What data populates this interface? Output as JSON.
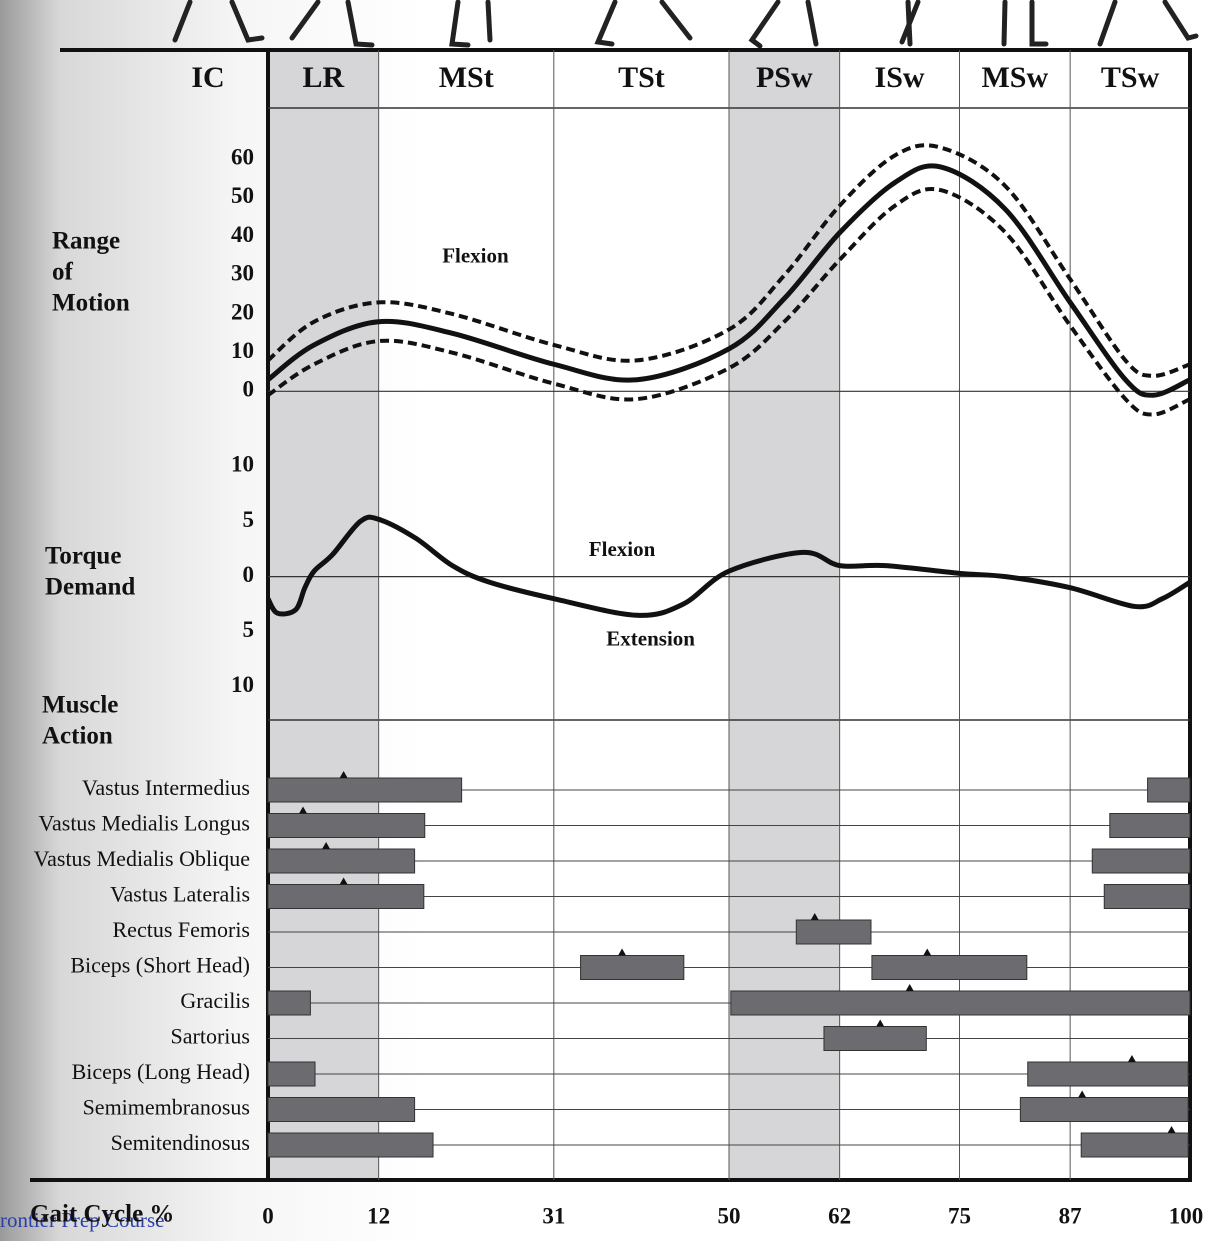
{
  "phases": [
    "IC",
    "LR",
    "MSt",
    "TSt",
    "PSw",
    "ISw",
    "MSw",
    "TSw"
  ],
  "shaded_phases": [
    1,
    4
  ],
  "watermark": "rontier Prep Course",
  "chart_data": [
    {
      "type": "line",
      "ylabel": [
        "Range",
        "of",
        "Motion"
      ],
      "annotations": [
        "Flexion"
      ],
      "x": [
        0,
        5,
        12,
        20,
        31,
        40,
        50,
        56,
        62,
        68,
        73,
        80,
        87,
        93,
        96,
        100
      ],
      "xlim": [
        0,
        100
      ],
      "ylim": [
        -10,
        73
      ],
      "yticks": [
        0,
        10,
        20,
        30,
        40,
        50,
        60
      ],
      "series": [
        {
          "color": "#111111",
          "style": "solid",
          "values": [
            3,
            12,
            18,
            15,
            7,
            3,
            11,
            24,
            41,
            54,
            58,
            47,
            23,
            3,
            -1,
            3
          ]
        },
        {
          "color": "#111111",
          "style": "dashed",
          "values": [
            8,
            18,
            23,
            20,
            12,
            8,
            16,
            30,
            48,
            61,
            63,
            53,
            29,
            8,
            4,
            7
          ]
        },
        {
          "color": "#111111",
          "style": "dashed",
          "values": [
            -1,
            7,
            13,
            10,
            2,
            -2,
            6,
            18,
            34,
            48,
            52,
            41,
            17,
            -2,
            -6,
            -2
          ]
        }
      ]
    },
    {
      "type": "line",
      "ylabel": [
        "Torque",
        "Demand"
      ],
      "annotations": [
        "Flexion",
        "Extension"
      ],
      "x": [
        0,
        1,
        3,
        4,
        5,
        7,
        10,
        12,
        16,
        20,
        24,
        31,
        40,
        45,
        50,
        58,
        62,
        67,
        75,
        80,
        87,
        94,
        97,
        100
      ],
      "xlim": [
        0,
        100
      ],
      "ylim": [
        -13,
        13.3
      ],
      "yticks": [
        10,
        5,
        0,
        {
          "value": -5,
          "label": "5"
        },
        {
          "value": -10,
          "label": "10"
        }
      ],
      "series": [
        {
          "color": "#111111",
          "style": "solid",
          "values": [
            -2,
            -3.3,
            -3,
            -1,
            0.5,
            2,
            5,
            5.2,
            3.5,
            1,
            -0.5,
            -2,
            -3.5,
            -2.5,
            0.5,
            2.2,
            1,
            1,
            0.3,
            0,
            -1,
            -2.7,
            -2,
            -0.5
          ]
        }
      ]
    },
    {
      "type": "gantt",
      "ylabel": [
        "Muscle",
        "Action"
      ],
      "xlabel": "Gait Cycle %",
      "xlim": [
        0,
        100
      ],
      "xticks": [
        0,
        12,
        31,
        50,
        62,
        75,
        87,
        100
      ],
      "color": "#6b6b70",
      "categories": [
        "Vastus Intermedius",
        "Vastus Medialis Longus",
        "Vastus Medialis Oblique",
        "Vastus Lateralis",
        "Rectus Femoris",
        "Biceps (Short Head)",
        "Gracilis",
        "Sartorius",
        "Biceps (Long Head)",
        "Semimembranosus",
        "Semitendinosus"
      ],
      "intervals": [
        [
          [
            0,
            21
          ],
          [
            95.4,
            100
          ]
        ],
        [
          [
            0,
            17
          ],
          [
            91.3,
            100
          ]
        ],
        [
          [
            0,
            15.9
          ],
          [
            89.4,
            100
          ]
        ],
        [
          [
            0,
            16.9
          ],
          [
            90.7,
            100
          ]
        ],
        [
          [
            57.3,
            65.4
          ]
        ],
        [
          [
            33.9,
            45.1
          ],
          [
            65.5,
            82.3
          ]
        ],
        [
          [
            0,
            4.6
          ],
          [
            50.2,
            100
          ]
        ],
        [
          [
            60.3,
            71.4
          ]
        ],
        [
          [
            0,
            5.1
          ],
          [
            82.4,
            99.8
          ]
        ],
        [
          [
            0,
            15.9
          ],
          [
            81.6,
            99.8
          ]
        ],
        [
          [
            0,
            17.9
          ],
          [
            88.2,
            99.8
          ]
        ]
      ],
      "peaks": [
        [
          8.2
        ],
        [
          3.8
        ],
        [
          6.3
        ],
        [
          8.2
        ],
        [
          59.3
        ],
        [
          38.4,
          71.5
        ],
        [
          69.6
        ],
        [
          66.4
        ],
        [
          93.7
        ],
        [
          88.3
        ],
        [
          98
        ]
      ]
    }
  ]
}
